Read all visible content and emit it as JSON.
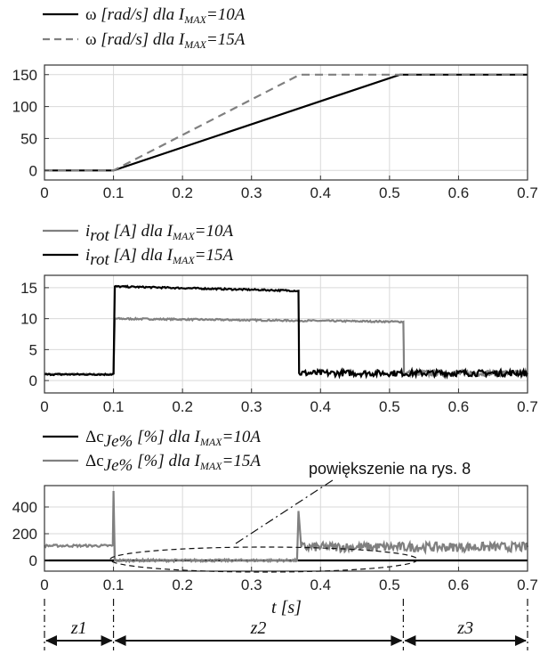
{
  "chart_data": [
    {
      "type": "line",
      "title": "",
      "xlabel": "",
      "ylabel": "",
      "xlim": [
        0,
        0.7
      ],
      "ylim": [
        -15,
        165
      ],
      "xticks": [
        "0",
        "0.1",
        "0.2",
        "0.3",
        "0.4",
        "0.5",
        "0.6",
        "0.7"
      ],
      "yticks": [
        "0",
        "50",
        "100",
        "150"
      ],
      "grid": true,
      "legend_position": "above",
      "legend": [
        {
          "symbol": "ω",
          "label": "[rad/s] dla I",
          "sub": "MAX",
          "tail": "=10A",
          "color": "#000000",
          "dash": "solid"
        },
        {
          "symbol": "ω",
          "label": "[rad/s] dla I",
          "sub": "MAX",
          "tail": "=15A",
          "color": "#808080",
          "dash": "dashed"
        }
      ],
      "series": [
        {
          "x": [
            0,
            0.1,
            0.515,
            0.7
          ],
          "y": [
            0,
            0,
            150,
            150
          ],
          "color": "#000000",
          "dash": "solid"
        },
        {
          "x": [
            0,
            0.1,
            0.37,
            0.7
          ],
          "y": [
            0,
            0,
            150,
            150
          ],
          "color": "#808080",
          "dash": "dashed"
        }
      ]
    },
    {
      "type": "line",
      "title": "",
      "xlabel": "",
      "ylabel": "",
      "xlim": [
        0,
        0.7
      ],
      "ylim": [
        -2,
        17
      ],
      "xticks": [
        "0",
        "0.1",
        "0.2",
        "0.3",
        "0.4",
        "0.5",
        "0.6",
        "0.7"
      ],
      "yticks": [
        "0",
        "5",
        "10",
        "15"
      ],
      "grid": true,
      "legend_position": "above",
      "legend": [
        {
          "symbol": "i",
          "symsub": "rot",
          "label": "[A] dla I",
          "sub": "MAX",
          "tail": "=10A",
          "color": "#808080",
          "dash": "solid"
        },
        {
          "symbol": "i",
          "symsub": "rot",
          "label": "[A] dla I",
          "sub": "MAX",
          "tail": "=15A",
          "color": "#000000",
          "dash": "solid"
        }
      ],
      "series": [
        {
          "x": [
            0,
            0.1,
            0.102,
            0.52,
            0.521,
            0.7
          ],
          "y": [
            1,
            1,
            10,
            9.5,
            1.2,
            1.2
          ],
          "color": "#808080",
          "dash": "solid",
          "noise": 0.5,
          "noise_from": 0.52
        },
        {
          "x": [
            0,
            0.1,
            0.102,
            0.368,
            0.369,
            0.7
          ],
          "y": [
            1,
            1,
            15.2,
            14.5,
            1.2,
            1.2
          ],
          "color": "#000000",
          "dash": "solid",
          "noise": 0.5,
          "noise_from": 0.368
        }
      ]
    },
    {
      "type": "line",
      "title": "",
      "xlabel": "t [s]",
      "ylabel": "",
      "xlim": [
        0,
        0.7
      ],
      "ylim": [
        -80,
        560
      ],
      "xticks": [
        "0",
        "0.1",
        "0.2",
        "0.3",
        "0.4",
        "0.5",
        "0.6",
        "0.7"
      ],
      "yticks": [
        "0",
        "200",
        "400"
      ],
      "grid": true,
      "legend_position": "above",
      "legend": [
        {
          "symbol": "Δc",
          "symsub": "Je%",
          "label": "[%] dla I",
          "sub": "MAX",
          "tail": "=10A",
          "color": "#000000",
          "dash": "solid"
        },
        {
          "symbol": "Δc",
          "symsub": "Je%",
          "label": "[%] dla I",
          "sub": "MAX",
          "tail": "=15A",
          "color": "#808080",
          "dash": "solid"
        }
      ],
      "annotation": "powiększenie na rys. 8",
      "series": [
        {
          "x": [
            0,
            0.1,
            0.101,
            0.515,
            0.52,
            0.7
          ],
          "y": [
            0,
            0,
            0,
            0,
            0,
            0
          ],
          "color": "#000000",
          "dash": "solid"
        },
        {
          "x": [
            0,
            0.099,
            0.1,
            0.102,
            0.366,
            0.368,
            0.372,
            0.7
          ],
          "y": [
            110,
            110,
            520,
            0,
            0,
            370,
            100,
            100
          ],
          "color": "#808080",
          "dash": "solid",
          "noise": 35,
          "noise_from": 0.37
        }
      ]
    }
  ],
  "zones": {
    "labels": [
      "z1",
      "z2",
      "z3"
    ],
    "bounds": [
      0,
      0.1,
      0.52,
      0.7
    ]
  }
}
